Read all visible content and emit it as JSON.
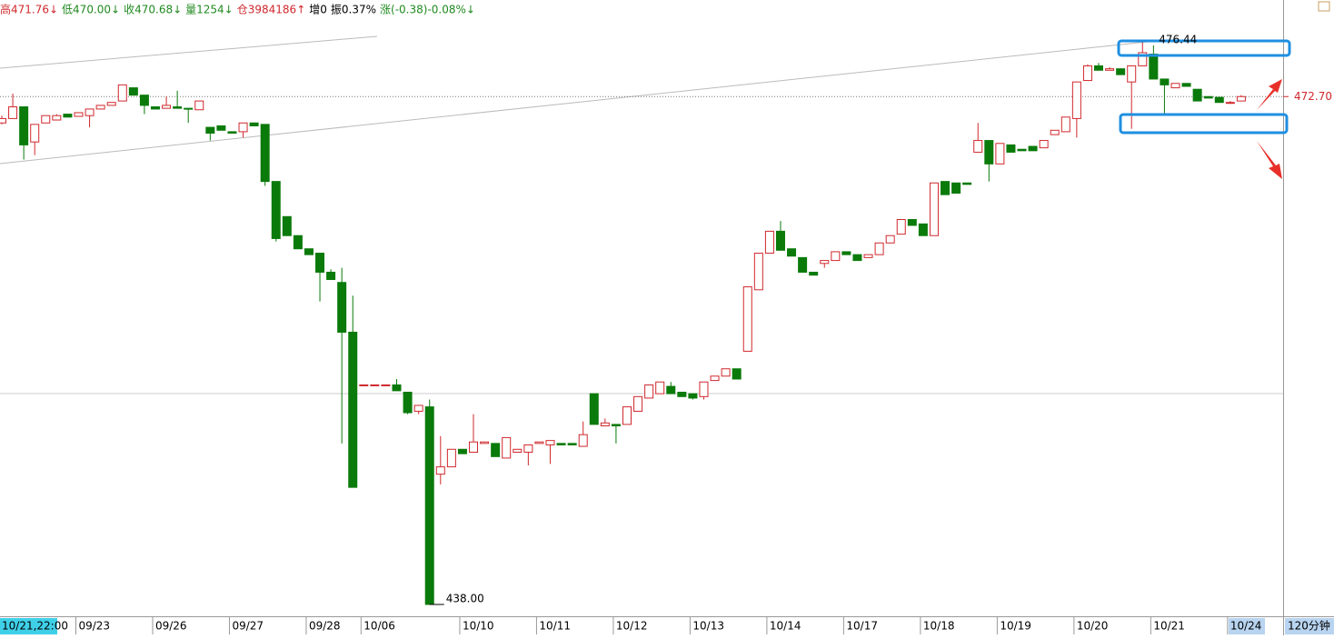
{
  "chart_data": {
    "type": "candlestick",
    "info": [
      {
        "text": "高471.76↓",
        "color": "#d0282d"
      },
      {
        "text": "低470.00↓",
        "color": "#208a20"
      },
      {
        "text": "收470.68↓",
        "color": "#208a20"
      },
      {
        "text": "量1254↓",
        "color": "#208a20"
      },
      {
        "text": "仓3984186↑",
        "color": "#d0282d"
      },
      {
        "text": "增0",
        "color": "#000000"
      },
      {
        "text": "振0.37%",
        "color": "#000000"
      },
      {
        "text": "涨(-0.38)-0.08%↓",
        "color": "#208a20"
      }
    ],
    "cursor_label": "10/21,22:00",
    "period": "120分钟",
    "up_color": "#d0282d",
    "down_color": "#0a7a0a",
    "ylim": [
      437.19,
      479.3
    ],
    "high_label": 476.44,
    "low_label": {
      "value": 438,
      "label": "438.00"
    },
    "last_price": {
      "value": 472.7,
      "label": "472.70"
    },
    "categories": [
      null,
      null,
      null,
      null,
      null,
      null,
      null,
      "09/23",
      null,
      null,
      null,
      null,
      null,
      null,
      "09/26",
      null,
      null,
      null,
      null,
      null,
      null,
      "09/27",
      null,
      null,
      null,
      null,
      null,
      null,
      "09/28",
      null,
      null,
      null,
      null,
      "10/06",
      null,
      null,
      null,
      null,
      null,
      null,
      null,
      null,
      "10/10",
      null,
      null,
      null,
      null,
      null,
      null,
      "10/11",
      null,
      null,
      null,
      null,
      null,
      null,
      "10/12",
      null,
      null,
      null,
      null,
      null,
      null,
      "10/13",
      null,
      null,
      null,
      null,
      null,
      null,
      "10/14",
      null,
      null,
      null,
      null,
      null,
      null,
      "10/17",
      null,
      null,
      null,
      null,
      null,
      null,
      "10/18",
      null,
      null,
      null,
      null,
      null,
      null,
      "10/19",
      null,
      null,
      null,
      null,
      null,
      null,
      "10/20",
      null,
      null,
      null,
      null,
      null,
      null,
      "10/21",
      null,
      null,
      null,
      null,
      null,
      null,
      "10/24",
      null
    ],
    "ohlc": [
      [
        470.9,
        471.4,
        470.8,
        471.2
      ],
      [
        471.2,
        472.9,
        471.2,
        472.0
      ],
      [
        472.0,
        472.0,
        468.4,
        469.4
      ],
      [
        469.6,
        470.8,
        468.7,
        470.8
      ],
      [
        470.9,
        471.4,
        470.9,
        471.4
      ],
      [
        471.1,
        471.5,
        471.1,
        471.4
      ],
      [
        471.5,
        471.5,
        471.3,
        471.3
      ],
      [
        471.35,
        471.6,
        471.35,
        471.6
      ],
      [
        471.4,
        471.85,
        470.6,
        471.85
      ],
      [
        471.85,
        472.1,
        471.85,
        472.1
      ],
      [
        472.1,
        472.3,
        472.1,
        472.3
      ],
      [
        472.4,
        473.5,
        472.4,
        473.5
      ],
      [
        473.3,
        473.3,
        472.8,
        472.8
      ],
      [
        472.8,
        472.8,
        471.5,
        472.1
      ],
      [
        472.0,
        472.0,
        471.85,
        471.85
      ],
      [
        471.9,
        472.7,
        471.9,
        472.1
      ],
      [
        472.0,
        473.1,
        471.9,
        471.9
      ],
      [
        471.9,
        471.9,
        470.9,
        471.85
      ],
      [
        471.8,
        472.4,
        471.8,
        472.4
      ],
      [
        470.6,
        470.6,
        469.7,
        470.2
      ],
      [
        470.7,
        470.7,
        470.4,
        470.4
      ],
      [
        470.3,
        470.3,
        470.2,
        470.2
      ],
      [
        470.3,
        470.9,
        469.9,
        470.9
      ],
      [
        470.9,
        470.9,
        470.7,
        470.7
      ],
      [
        470.8,
        470.8,
        466.6,
        466.9
      ],
      [
        466.9,
        466.9,
        462.8,
        463.0
      ],
      [
        464.5,
        464.5,
        463.2,
        463.2
      ],
      [
        463.2,
        463.2,
        462.3,
        462.3
      ],
      [
        462.3,
        462.3,
        461.9,
        461.9
      ],
      [
        462.0,
        462.0,
        458.7,
        460.7
      ],
      [
        460.7,
        460.9,
        460.2,
        460.2
      ],
      [
        460.0,
        461.0,
        449.0,
        456.6
      ],
      [
        456.6,
        459.1,
        446.0,
        446.0
      ],
      [
        453.0,
        453.0,
        453.0,
        453.0
      ],
      [
        453.0,
        453.0,
        453.0,
        453.0
      ],
      [
        453.0,
        453.0,
        453.0,
        453.0
      ],
      [
        453.0,
        453.4,
        452.6,
        452.6
      ],
      [
        452.5,
        452.5,
        451.0,
        451.1
      ],
      [
        451.2,
        451.6,
        451.0,
        451.6
      ],
      [
        451.5,
        452.0,
        438.0,
        438.0
      ],
      [
        446.9,
        449.5,
        446.2,
        447.4
      ],
      [
        447.4,
        448.6,
        447.4,
        448.6
      ],
      [
        448.6,
        448.6,
        448.3,
        448.3
      ],
      [
        448.4,
        451.0,
        448.4,
        449.1
      ],
      [
        449.0,
        449.1,
        449.0,
        449.1
      ],
      [
        449.0,
        449.0,
        448.1,
        448.1
      ],
      [
        448.0,
        449.4,
        448.0,
        449.4
      ],
      [
        448.4,
        448.6,
        448.4,
        448.6
      ],
      [
        448.4,
        448.9,
        447.5,
        448.9
      ],
      [
        449.0,
        449.1,
        449.0,
        449.1
      ],
      [
        448.9,
        449.2,
        447.6,
        449.2
      ],
      [
        449.0,
        449.0,
        448.9,
        448.9
      ],
      [
        449.0,
        449.0,
        448.9,
        448.9
      ],
      [
        448.8,
        450.5,
        448.8,
        449.6
      ],
      [
        452.4,
        452.4,
        450.3,
        450.3
      ],
      [
        450.2,
        450.7,
        450.2,
        450.4
      ],
      [
        450.3,
        450.3,
        449.0,
        450.2
      ],
      [
        450.3,
        451.5,
        450.3,
        451.5
      ],
      [
        451.2,
        452.2,
        451.2,
        452.2
      ],
      [
        452.1,
        453.0,
        452.1,
        453.0
      ],
      [
        452.4,
        453.2,
        452.4,
        453.2
      ],
      [
        452.9,
        453.2,
        452.4,
        452.4
      ],
      [
        452.5,
        452.5,
        452.2,
        452.2
      ],
      [
        452.4,
        452.4,
        452.0,
        452.1
      ],
      [
        452.2,
        453.2,
        452.0,
        453.2
      ],
      [
        453.3,
        453.6,
        453.3,
        453.6
      ],
      [
        453.6,
        454.1,
        453.6,
        454.1
      ],
      [
        454.1,
        454.1,
        453.4,
        453.4
      ],
      [
        455.3,
        459.7,
        455.3,
        459.7
      ],
      [
        459.5,
        462.0,
        459.5,
        462.0
      ],
      [
        462.0,
        463.5,
        462.0,
        463.5
      ],
      [
        463.5,
        464.2,
        462.2,
        462.2
      ],
      [
        462.3,
        462.3,
        461.8,
        461.8
      ],
      [
        461.7,
        461.7,
        460.7,
        460.7
      ],
      [
        460.7,
        460.7,
        460.5,
        460.5
      ],
      [
        461.3,
        461.5,
        461.0,
        461.5
      ],
      [
        461.5,
        462.1,
        461.5,
        462.1
      ],
      [
        462.1,
        462.1,
        461.9,
        461.9
      ],
      [
        461.9,
        461.9,
        461.5,
        461.5
      ],
      [
        461.7,
        461.9,
        461.7,
        461.9
      ],
      [
        461.9,
        462.7,
        461.9,
        462.7
      ],
      [
        462.7,
        463.2,
        462.7,
        463.2
      ],
      [
        463.3,
        464.3,
        463.3,
        464.3
      ],
      [
        464.3,
        464.3,
        463.9,
        463.9
      ],
      [
        464.0,
        464.0,
        463.2,
        463.2
      ],
      [
        463.2,
        466.8,
        463.2,
        466.8
      ],
      [
        466.9,
        466.9,
        466.0,
        466.0
      ],
      [
        466.8,
        466.8,
        466.1,
        466.1
      ],
      [
        466.8,
        466.8,
        466.7,
        466.7
      ],
      [
        468.9,
        470.9,
        468.9,
        469.7
      ],
      [
        469.7,
        469.7,
        466.9,
        468.1
      ],
      [
        468.1,
        469.5,
        468.1,
        469.5
      ],
      [
        469.4,
        469.4,
        468.9,
        468.9
      ],
      [
        469.1,
        469.1,
        469.0,
        469.0
      ],
      [
        469.3,
        469.3,
        469.0,
        469.0
      ],
      [
        469.2,
        469.7,
        469.2,
        469.7
      ],
      [
        470.1,
        470.4,
        470.1,
        470.4
      ],
      [
        470.3,
        471.3,
        470.3,
        471.3
      ],
      [
        471.2,
        473.7,
        469.9,
        473.7
      ],
      [
        473.8,
        474.9,
        473.8,
        474.8
      ],
      [
        474.8,
        475.0,
        474.5,
        474.5
      ],
      [
        474.5,
        474.7,
        474.5,
        474.6
      ],
      [
        474.6,
        474.6,
        474.2,
        474.2
      ],
      [
        473.7,
        474.8,
        470.5,
        474.8
      ],
      [
        474.8,
        476.44,
        474.8,
        475.7
      ],
      [
        475.6,
        476.2,
        473.9,
        473.9
      ],
      [
        473.9,
        473.9,
        471.5,
        473.5
      ],
      [
        473.3,
        473.6,
        473.3,
        473.6
      ],
      [
        473.6,
        473.6,
        473.4,
        473.4
      ],
      [
        473.2,
        473.2,
        472.4,
        472.4
      ],
      [
        472.7,
        472.7,
        472.6,
        472.6
      ],
      [
        472.65,
        472.65,
        472.3,
        472.3
      ],
      [
        472.25,
        472.4,
        472.2,
        472.3
      ],
      [
        472.4,
        472.8,
        472.4,
        472.7
      ]
    ]
  }
}
